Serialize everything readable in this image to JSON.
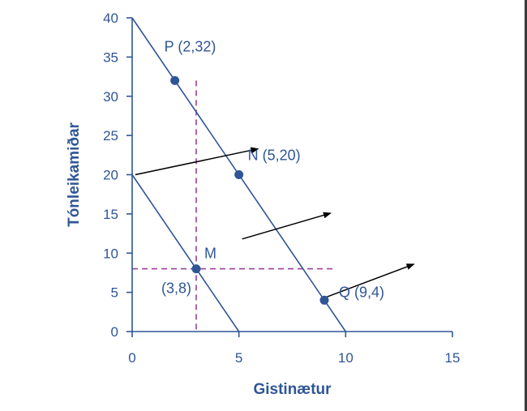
{
  "chart_data": {
    "type": "line",
    "xlabel": "Gistinætur",
    "ylabel": "Tónleikamiðar",
    "xlim": [
      0,
      15
    ],
    "ylim": [
      0,
      40
    ],
    "xticks": [
      0,
      5,
      10,
      15
    ],
    "yticks": [
      0,
      5,
      10,
      15,
      20,
      25,
      30,
      35,
      40
    ],
    "grid": false,
    "series": [
      {
        "x": [
          0,
          5
        ],
        "y": [
          20,
          0
        ],
        "color": "#2f5597"
      },
      {
        "x": [
          0,
          10
        ],
        "y": [
          40,
          0
        ],
        "color": "#2f5597"
      }
    ],
    "points": [
      {
        "label": "P (2,32)",
        "x": 2,
        "y": 32
      },
      {
        "label": "N (5,20)",
        "x": 5,
        "y": 20
      },
      {
        "label": "Q (9,4)",
        "x": 9,
        "y": 4
      },
      {
        "label": "M",
        "x": 3,
        "y": 8
      }
    ],
    "annotations": [
      {
        "text": "(3,8)"
      }
    ],
    "reference_lines": {
      "vertical_x": 3,
      "horizontal_y": 8,
      "color": "#9b3f9b",
      "style": "dashed"
    },
    "shift_arrows": [
      {
        "from": [
          0.15,
          20
        ],
        "to": [
          5.9,
          23.3
        ]
      },
      {
        "from": [
          5.15,
          11.8
        ],
        "to": [
          9.3,
          15.1
        ]
      },
      {
        "from": [
          9.1,
          4.4
        ],
        "to": [
          13.2,
          8.6
        ]
      }
    ],
    "colors": {
      "axis": "#2f5597",
      "line": "#2f5597",
      "point": "#2f5597",
      "arrow": "#000000"
    }
  }
}
